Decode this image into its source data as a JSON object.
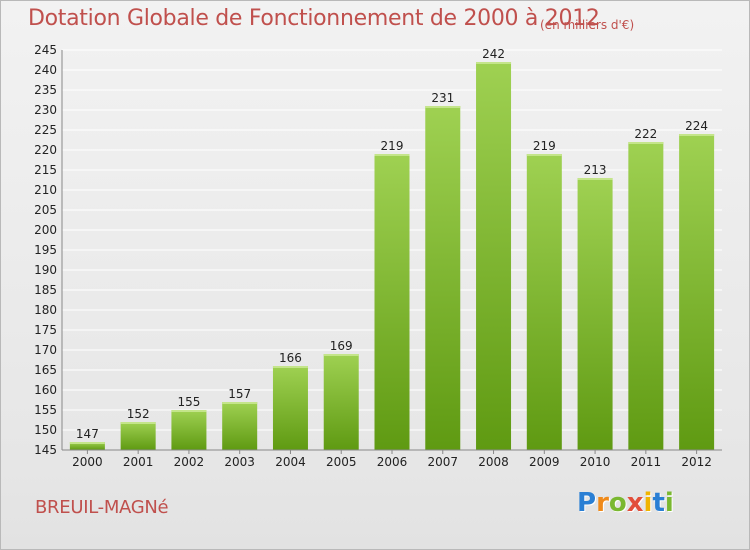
{
  "header": {
    "title": "Dotation Globale de Fonctionnement de 2000 à 2012",
    "unit": "(en milliers d'€)"
  },
  "footer": {
    "place": "BREUIL-MAGNé",
    "logo_text": "Proxiti"
  },
  "colors": {
    "title": "#c0504d",
    "bar_light": "#9fd152",
    "bar_dark": "#5f9a12",
    "axis": "#888888",
    "grid": "#ffffff"
  },
  "chart_data": {
    "type": "bar",
    "title": "Dotation Globale de Fonctionnement de 2000 à 2012",
    "subtitle": "(en milliers d'€)",
    "xlabel": "",
    "ylabel": "",
    "categories": [
      "2000",
      "2001",
      "2002",
      "2003",
      "2004",
      "2005",
      "2006",
      "2007",
      "2008",
      "2009",
      "2010",
      "2011",
      "2012"
    ],
    "values": [
      147,
      152,
      155,
      157,
      166,
      169,
      219,
      231,
      242,
      219,
      213,
      222,
      224
    ],
    "ylim": [
      145,
      245
    ],
    "yticks": [
      145,
      150,
      155,
      160,
      165,
      170,
      175,
      180,
      185,
      190,
      195,
      200,
      205,
      210,
      215,
      220,
      225,
      230,
      235,
      240,
      245
    ],
    "grid": true,
    "legend": "none",
    "data_labels": true
  }
}
